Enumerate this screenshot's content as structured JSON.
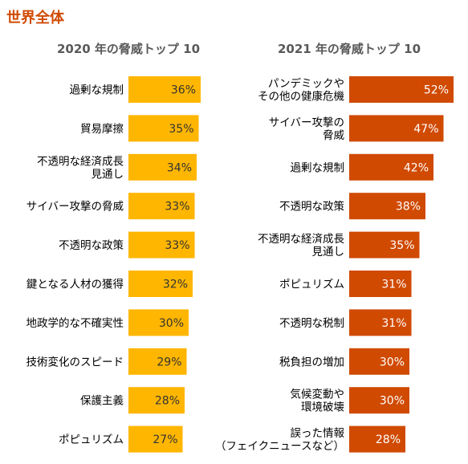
{
  "page_title": "世界全体",
  "colors": {
    "title": "#d04a02",
    "left_bars": "#ffb600",
    "right_bars": "#d04a02",
    "left_values": "#333333",
    "right_values": "#ffffff"
  },
  "chart_data": [
    {
      "type": "bar",
      "orientation": "horizontal",
      "title": "2020 年の脅威トップ 10",
      "categories": [
        "過剰な規制",
        "貿易摩擦",
        "不透明な経済成長\n見通し",
        "サイバー攻撃の脅威",
        "不透明な政策",
        "鍵となる人材の獲得",
        "地政学的な不確実性",
        "技術変化のスピード",
        "保護主義",
        "ポピュリズム"
      ],
      "values": [
        36,
        35,
        34,
        33,
        33,
        32,
        30,
        29,
        28,
        27
      ],
      "unit": "%",
      "xlim": [
        0,
        60
      ],
      "grid": false
    },
    {
      "type": "bar",
      "orientation": "horizontal",
      "title": "2021 年の脅威トップ 10",
      "categories": [
        "パンデミックや\nその他の健康危機",
        "サイバー攻撃の\n脅威",
        "過剰な規制",
        "不透明な政策",
        "不透明な経済成長\n見通し",
        "ポピュリズム",
        "不透明な税制",
        "税負担の増加",
        "気候変動や\n環境破壊",
        "誤った情報\n（フェイクニュースなど）"
      ],
      "values": [
        52,
        47,
        42,
        38,
        35,
        31,
        31,
        30,
        30,
        28
      ],
      "unit": "%",
      "xlim": [
        0,
        60
      ],
      "grid": false
    }
  ]
}
